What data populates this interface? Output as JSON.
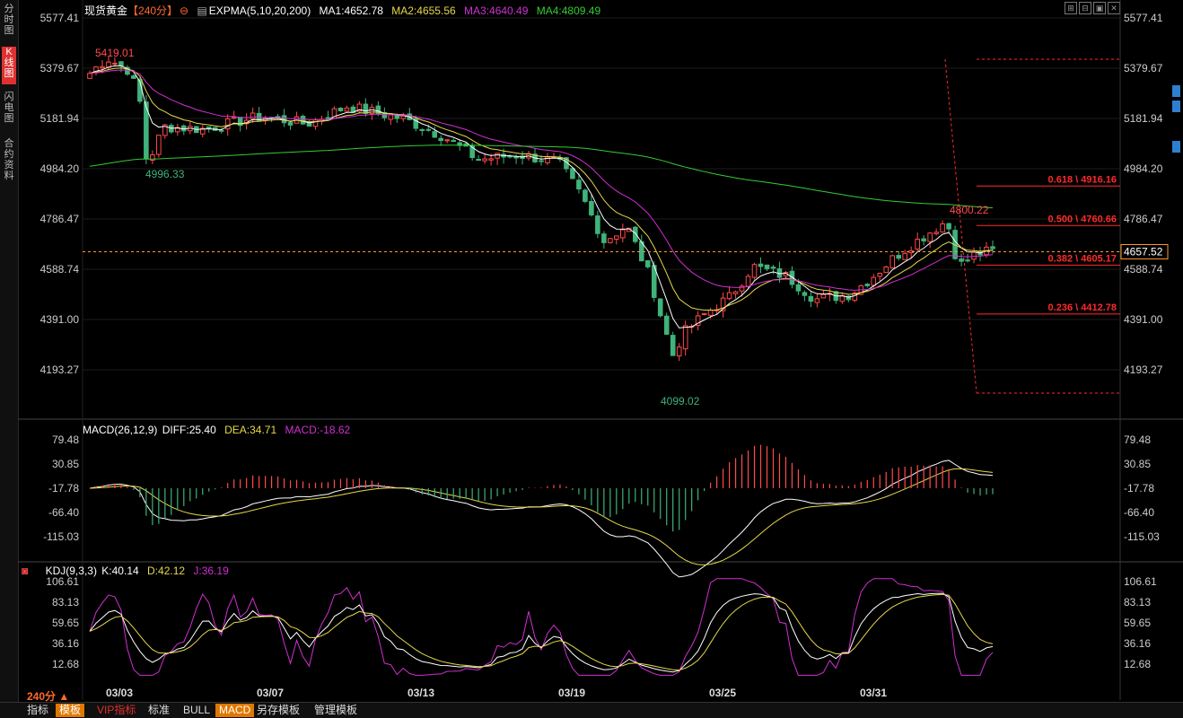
{
  "sidebar": {
    "tabs": [
      {
        "label": "分\n时\n图"
      },
      {
        "label": "K\n线\n图"
      },
      {
        "label": "闪\n电\n图"
      },
      {
        "label": "合\n约\n资\n料"
      }
    ]
  },
  "header": {
    "symbol": "现货黄金",
    "period": "【240分】",
    "indicator": "EXPMA(5,10,20,200)",
    "ma1": "MA1:4652.78",
    "ma2": "MA2:4655.56",
    "ma3": "MA3:4640.49",
    "ma4": "MA4:4809.49"
  },
  "window_buttons": [
    "⊞",
    "⊟",
    "▣",
    "✕"
  ],
  "colors": {
    "up": "#ff4a4a",
    "down": "#3fb37a",
    "ma1": "#ffffff",
    "ma2": "#e6d84a",
    "ma3": "#d030d0",
    "ma4": "#33cc33",
    "fib": "#ff2a2a",
    "price_line": "#ff9a2a",
    "axis_text": "#cccccc"
  },
  "price_axis": {
    "labels": [
      "5577.41",
      "5379.67",
      "5181.94",
      "4984.20",
      "4786.47",
      "4588.74",
      "4391.00",
      "4193.27"
    ],
    "current_price": "4657.52"
  },
  "annotations": {
    "high": "5419.01",
    "low1": "4996.33",
    "low2": "4099.02",
    "recent_high": "4800.22"
  },
  "fib_levels": [
    {
      "label": "0.618 \\ 4916.16",
      "value": 4916.16
    },
    {
      "label": "0.500 \\ 4760.66",
      "value": 4760.66
    },
    {
      "label": "0.382 \\ 4605.17",
      "value": 4605.17
    },
    {
      "label": "0.236 \\ 4412.78",
      "value": 4412.78
    }
  ],
  "macd": {
    "title": "MACD(26,12,9)",
    "diff": "DIFF:25.40",
    "dea": "DEA:34.71",
    "macd": "MACD:-18.62",
    "axis": [
      "79.48",
      "30.85",
      "-17.78",
      "-66.40",
      "-115.03"
    ]
  },
  "kdj": {
    "title": "KDJ(9,3,3)",
    "k": "K:40.14",
    "d": "D:42.12",
    "j": "J:36.19",
    "axis": [
      "106.61",
      "83.13",
      "59.65",
      "36.16",
      "12.68"
    ]
  },
  "dates": [
    "03/03",
    "03/07",
    "03/13",
    "03/19",
    "03/25",
    "03/31"
  ],
  "period_selector": "240分 ▲",
  "toolbar": [
    {
      "label": "指标",
      "state": "normal"
    },
    {
      "label": "模板",
      "state": "active"
    },
    {
      "label": "VIP指标",
      "state": "vip"
    },
    {
      "label": "标准",
      "state": "normal"
    },
    {
      "label": "BULL",
      "state": "normal"
    },
    {
      "label": "MACD",
      "state": "active"
    },
    {
      "label": "另存模板",
      "state": "normal"
    },
    {
      "label": "管理模板",
      "state": "normal"
    }
  ]
}
